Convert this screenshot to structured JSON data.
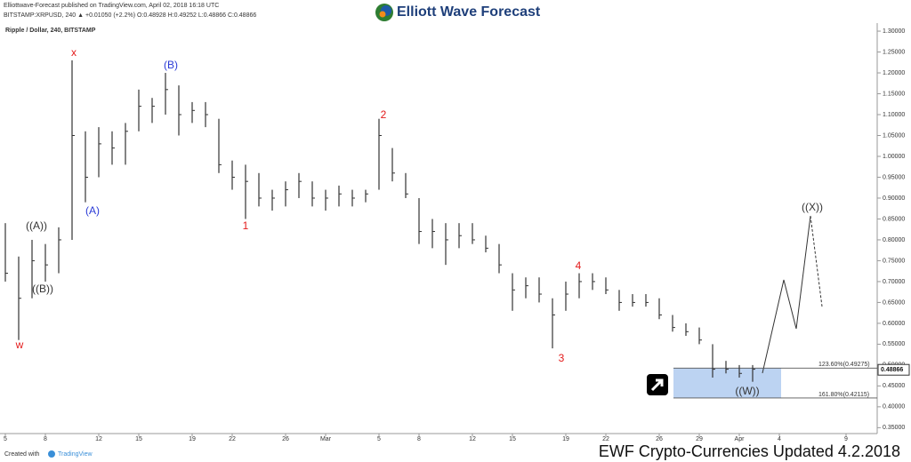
{
  "header": {
    "published": "Elliottwave-Forecast published on TradingView.com, April 02, 2018 16:18 UTC",
    "symbol_line": "BITSTAMP:XRPUSD, 240 ▲ +0.01050 (+2.2%) O:0.48928 H:0.49252 L:0.48866 C:0.48866",
    "logo": "Elliott Wave Forecast",
    "created_with": "Created with",
    "brand": "TradingView",
    "banner": "EWF Crypto-Currencies Updated 4.2.2018"
  },
  "chart_data": {
    "type": "ohlc",
    "title": "Ripple / Dollar, 240, BITSTAMP",
    "color": "#333333",
    "x": [
      "2018-02-05",
      "2018-02-06",
      "2018-02-07",
      "2018-02-08",
      "2018-02-09",
      "2018-02-10",
      "2018-02-11",
      "2018-02-12",
      "2018-02-13",
      "2018-02-14",
      "2018-02-15",
      "2018-02-16",
      "2018-02-17",
      "2018-02-18",
      "2018-02-19",
      "2018-02-20",
      "2018-02-21",
      "2018-02-22",
      "2018-02-23",
      "2018-02-24",
      "2018-02-25",
      "2018-02-26",
      "2018-02-27",
      "2018-02-28",
      "2018-03-01",
      "2018-03-02",
      "2018-03-03",
      "2018-03-04",
      "2018-03-05",
      "2018-03-06",
      "2018-03-07",
      "2018-03-08",
      "2018-03-09",
      "2018-03-10",
      "2018-03-11",
      "2018-03-12",
      "2018-03-13",
      "2018-03-14",
      "2018-03-15",
      "2018-03-16",
      "2018-03-17",
      "2018-03-18",
      "2018-03-19",
      "2018-03-20",
      "2018-03-21",
      "2018-03-22",
      "2018-03-23",
      "2018-03-24",
      "2018-03-25",
      "2018-03-26",
      "2018-03-27",
      "2018-03-28",
      "2018-03-29",
      "2018-03-30",
      "2018-03-31",
      "2018-04-01",
      "2018-04-02"
    ],
    "high": [
      0.84,
      0.76,
      0.8,
      0.79,
      0.83,
      1.23,
      1.06,
      1.07,
      1.06,
      1.08,
      1.16,
      1.14,
      1.2,
      1.17,
      1.13,
      1.13,
      1.09,
      0.99,
      0.98,
      0.96,
      0.92,
      0.94,
      0.96,
      0.94,
      0.92,
      0.93,
      0.92,
      0.92,
      1.09,
      1.02,
      0.96,
      0.9,
      0.85,
      0.84,
      0.84,
      0.84,
      0.81,
      0.79,
      0.72,
      0.71,
      0.71,
      0.66,
      0.7,
      0.72,
      0.72,
      0.71,
      0.68,
      0.67,
      0.67,
      0.66,
      0.62,
      0.6,
      0.59,
      0.55,
      0.51,
      0.5,
      0.5
    ],
    "low": [
      0.7,
      0.56,
      0.66,
      0.7,
      0.72,
      0.8,
      0.89,
      0.95,
      0.98,
      0.98,
      1.06,
      1.08,
      1.1,
      1.05,
      1.08,
      1.07,
      0.96,
      0.92,
      0.85,
      0.88,
      0.87,
      0.88,
      0.9,
      0.88,
      0.87,
      0.88,
      0.88,
      0.89,
      0.92,
      0.94,
      0.9,
      0.79,
      0.78,
      0.74,
      0.78,
      0.79,
      0.77,
      0.72,
      0.63,
      0.66,
      0.65,
      0.54,
      0.63,
      0.66,
      0.68,
      0.67,
      0.63,
      0.64,
      0.64,
      0.61,
      0.58,
      0.57,
      0.55,
      0.47,
      0.48,
      0.47,
      0.46
    ],
    "close": [
      0.72,
      0.66,
      0.75,
      0.74,
      0.8,
      1.05,
      0.95,
      1.03,
      1.02,
      1.06,
      1.12,
      1.12,
      1.16,
      1.1,
      1.11,
      1.1,
      0.98,
      0.95,
      0.94,
      0.9,
      0.9,
      0.92,
      0.94,
      0.9,
      0.9,
      0.91,
      0.9,
      0.91,
      1.05,
      0.96,
      0.91,
      0.82,
      0.82,
      0.8,
      0.81,
      0.8,
      0.78,
      0.74,
      0.68,
      0.69,
      0.67,
      0.62,
      0.67,
      0.7,
      0.7,
      0.68,
      0.65,
      0.65,
      0.65,
      0.62,
      0.59,
      0.58,
      0.56,
      0.49,
      0.49,
      0.48,
      0.49
    ],
    "xlim": [
      "2018-02-05",
      "2018-04-11"
    ],
    "xticks": [
      {
        "value": "2018-02-05",
        "label": "5"
      },
      {
        "value": "2018-02-08",
        "label": "8"
      },
      {
        "value": "2018-02-12",
        "label": "12"
      },
      {
        "value": "2018-02-15",
        "label": "15"
      },
      {
        "value": "2018-02-19",
        "label": "19"
      },
      {
        "value": "2018-02-22",
        "label": "22"
      },
      {
        "value": "2018-02-26",
        "label": "26"
      },
      {
        "value": "2018-03-01",
        "label": "Mar"
      },
      {
        "value": "2018-03-05",
        "label": "5"
      },
      {
        "value": "2018-03-08",
        "label": "8"
      },
      {
        "value": "2018-03-12",
        "label": "12"
      },
      {
        "value": "2018-03-15",
        "label": "15"
      },
      {
        "value": "2018-03-19",
        "label": "19"
      },
      {
        "value": "2018-03-22",
        "label": "22"
      },
      {
        "value": "2018-03-26",
        "label": "26"
      },
      {
        "value": "2018-03-29",
        "label": "29"
      },
      {
        "value": "2018-04-01",
        "label": "Apr"
      },
      {
        "value": "2018-04-04",
        "label": "4"
      },
      {
        "value": "2018-04-09",
        "label": "9"
      }
    ],
    "ylim": [
      0.338,
      1.315
    ],
    "yticks": [
      {
        "value": 1.3,
        "label": "1.30000"
      },
      {
        "value": 1.25,
        "label": "1.25000"
      },
      {
        "value": 1.2,
        "label": "1.20000"
      },
      {
        "value": 1.15,
        "label": "1.15000"
      },
      {
        "value": 1.1,
        "label": "1.10000"
      },
      {
        "value": 1.05,
        "label": "1.05000"
      },
      {
        "value": 1.0,
        "label": "1.00000"
      },
      {
        "value": 0.95,
        "label": "0.95000"
      },
      {
        "value": 0.9,
        "label": "0.90000"
      },
      {
        "value": 0.85,
        "label": "0.85000"
      },
      {
        "value": 0.8,
        "label": "0.80000"
      },
      {
        "value": 0.75,
        "label": "0.75000"
      },
      {
        "value": 0.7,
        "label": "0.70000"
      },
      {
        "value": 0.65,
        "label": "0.65000"
      },
      {
        "value": 0.6,
        "label": "0.60000"
      },
      {
        "value": 0.55,
        "label": "0.55000"
      },
      {
        "value": 0.5,
        "label": "0.50000"
      },
      {
        "value": 0.45,
        "label": "0.45000"
      },
      {
        "value": 0.4,
        "label": "0.40000"
      },
      {
        "value": 0.35,
        "label": "0.35000"
      }
    ],
    "last_price": 0.48866,
    "fib_levels": [
      {
        "value": 0.49275,
        "label": "123.60%(0.49275)"
      },
      {
        "value": 0.42115,
        "label": "161.80%(0.42115)"
      }
    ],
    "annotations": [
      "x",
      "w",
      "(A)",
      "(B)",
      "1",
      "2",
      "3",
      "4",
      "((A))",
      "((B))",
      "((X))",
      "((W))"
    ]
  }
}
